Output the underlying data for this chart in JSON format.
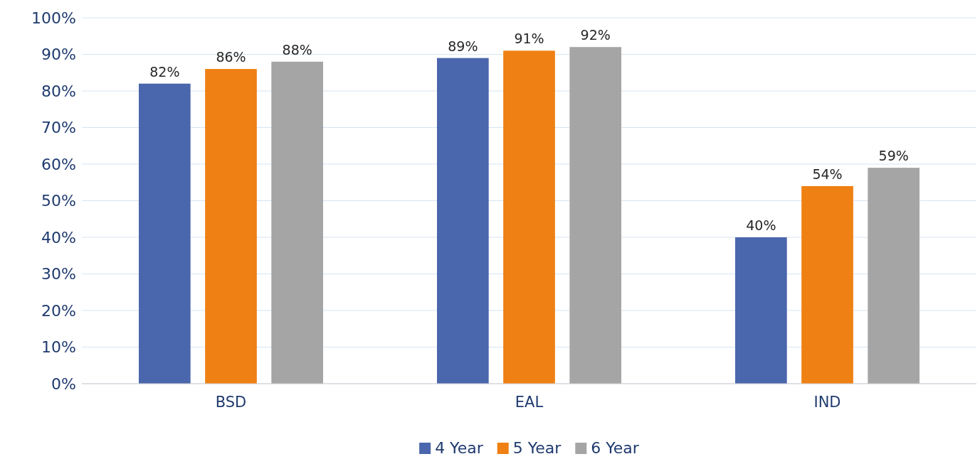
{
  "chart_data": {
    "type": "bar",
    "categories": [
      "BSD",
      "EAL",
      "IND"
    ],
    "series": [
      {
        "name": "4 Year",
        "color": "#4a66ac",
        "values": [
          82,
          89,
          40
        ],
        "value_labels": [
          "82%",
          "89%",
          "40%"
        ]
      },
      {
        "name": "5 Year",
        "color": "#ef8013",
        "values": [
          86,
          91,
          54
        ],
        "value_labels": [
          "86%",
          "91%",
          "54%"
        ]
      },
      {
        "name": "6 Year",
        "color": "#a5a5a5",
        "values": [
          88,
          92,
          59
        ],
        "value_labels": [
          "88%",
          "92%",
          "59%"
        ]
      }
    ],
    "ylim": [
      0,
      100
    ],
    "yticks": [
      {
        "value": 0,
        "label": "0%"
      },
      {
        "value": 10,
        "label": "10%"
      },
      {
        "value": 20,
        "label": "20%"
      },
      {
        "value": 30,
        "label": "30%"
      },
      {
        "value": 40,
        "label": "40%"
      },
      {
        "value": 50,
        "label": "50%"
      },
      {
        "value": 60,
        "label": "60%"
      },
      {
        "value": 70,
        "label": "70%"
      },
      {
        "value": 80,
        "label": "80%"
      },
      {
        "value": 90,
        "label": "90%"
      },
      {
        "value": 100,
        "label": "100%"
      }
    ],
    "grid": "y",
    "legend": "bottom"
  }
}
